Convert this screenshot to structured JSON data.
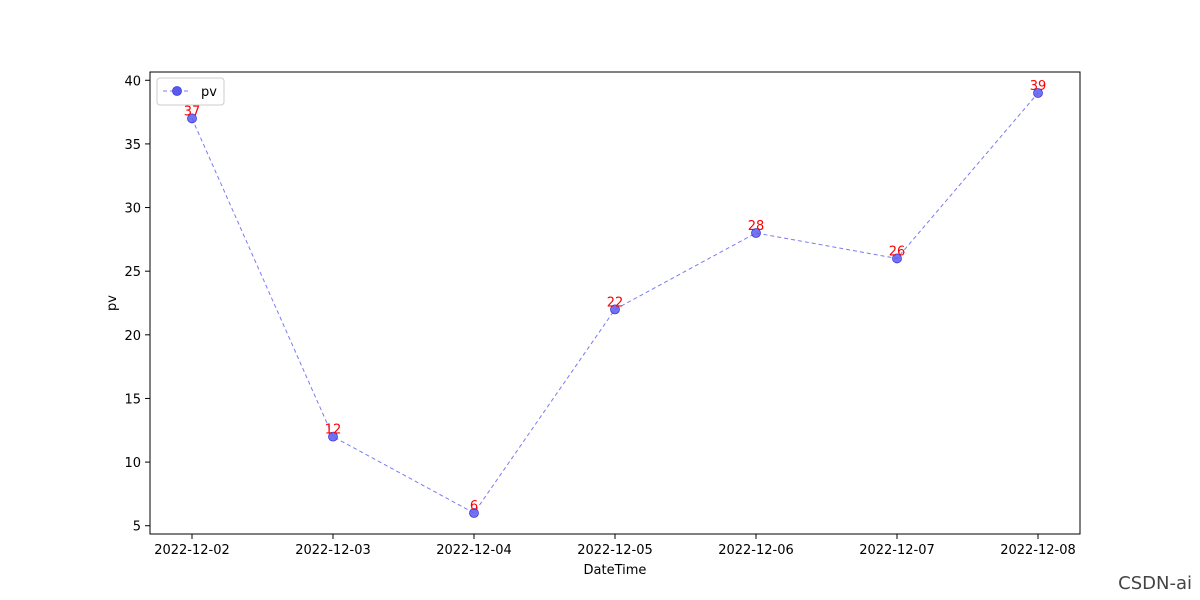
{
  "chart_data": {
    "type": "line",
    "x": [
      "2022-12-02",
      "2022-12-03",
      "2022-12-04",
      "2022-12-05",
      "2022-12-06",
      "2022-12-07",
      "2022-12-08"
    ],
    "series": [
      {
        "name": "pv",
        "values": [
          37,
          12,
          6,
          22,
          28,
          26,
          39
        ]
      }
    ],
    "data_labels": [
      "37",
      "12",
      "6",
      "22",
      "28",
      "26",
      "39"
    ],
    "xlabel": "DateTime",
    "ylabel": "pv",
    "yticks": [
      5,
      10,
      15,
      20,
      25,
      30,
      35,
      40
    ],
    "ylim": [
      4.35,
      40.65
    ],
    "grid": false,
    "legend": "top-left",
    "line_style": "dashed",
    "marker": "circle",
    "colors": {
      "line": "#7b7bf0",
      "marker": "#5a5af0",
      "data_label": "#ff0000",
      "axis": "#000000"
    }
  },
  "watermark": "CSDN-ai"
}
